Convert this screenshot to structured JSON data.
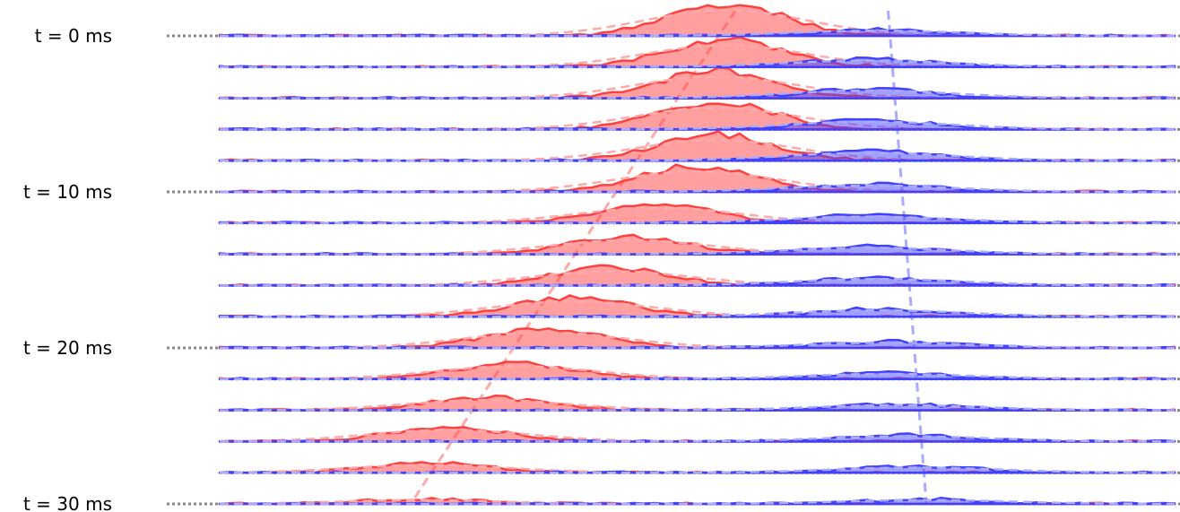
{
  "chart_data": {
    "type": "area",
    "title": "",
    "xlabel": "",
    "ylabel": "",
    "n_traces": 16,
    "time_step_ms": 2,
    "time_labels": [
      {
        "index": 0,
        "text": "t = 0 ms"
      },
      {
        "index": 5,
        "text": "t = 10 ms"
      },
      {
        "index": 10,
        "text": "t = 20 ms"
      },
      {
        "index": 15,
        "text": "t = 30 ms"
      }
    ],
    "x_range": [
      0,
      1
    ],
    "series": [
      {
        "color": "#ff4040",
        "peak_x": [
          0.53,
          0.53,
          0.52,
          0.52,
          0.52,
          0.5,
          0.46,
          0.43,
          0.41,
          0.37,
          0.34,
          0.31,
          0.28,
          0.24,
          0.22,
          0.21
        ],
        "amplitude": [
          1.0,
          0.85,
          0.85,
          0.85,
          0.8,
          0.8,
          0.6,
          0.55,
          0.55,
          0.6,
          0.6,
          0.5,
          0.4,
          0.45,
          0.3,
          0.15
        ]
      },
      {
        "color": "#4040ff",
        "peak_x": [
          0.69,
          0.68,
          0.68,
          0.68,
          0.68,
          0.68,
          0.68,
          0.68,
          0.69,
          0.69,
          0.7,
          0.7,
          0.71,
          0.72,
          0.73,
          0.74
        ],
        "amplitude": [
          0.2,
          0.25,
          0.3,
          0.3,
          0.3,
          0.25,
          0.25,
          0.25,
          0.25,
          0.25,
          0.2,
          0.2,
          0.2,
          0.2,
          0.2,
          0.15
        ]
      }
    ],
    "trend_lines": [
      {
        "color": "#ffaaaa",
        "x_start": 0.54,
        "x_end": 0.2
      },
      {
        "color": "#aaaaff",
        "x_start": 0.7,
        "x_end": 0.74
      }
    ]
  }
}
